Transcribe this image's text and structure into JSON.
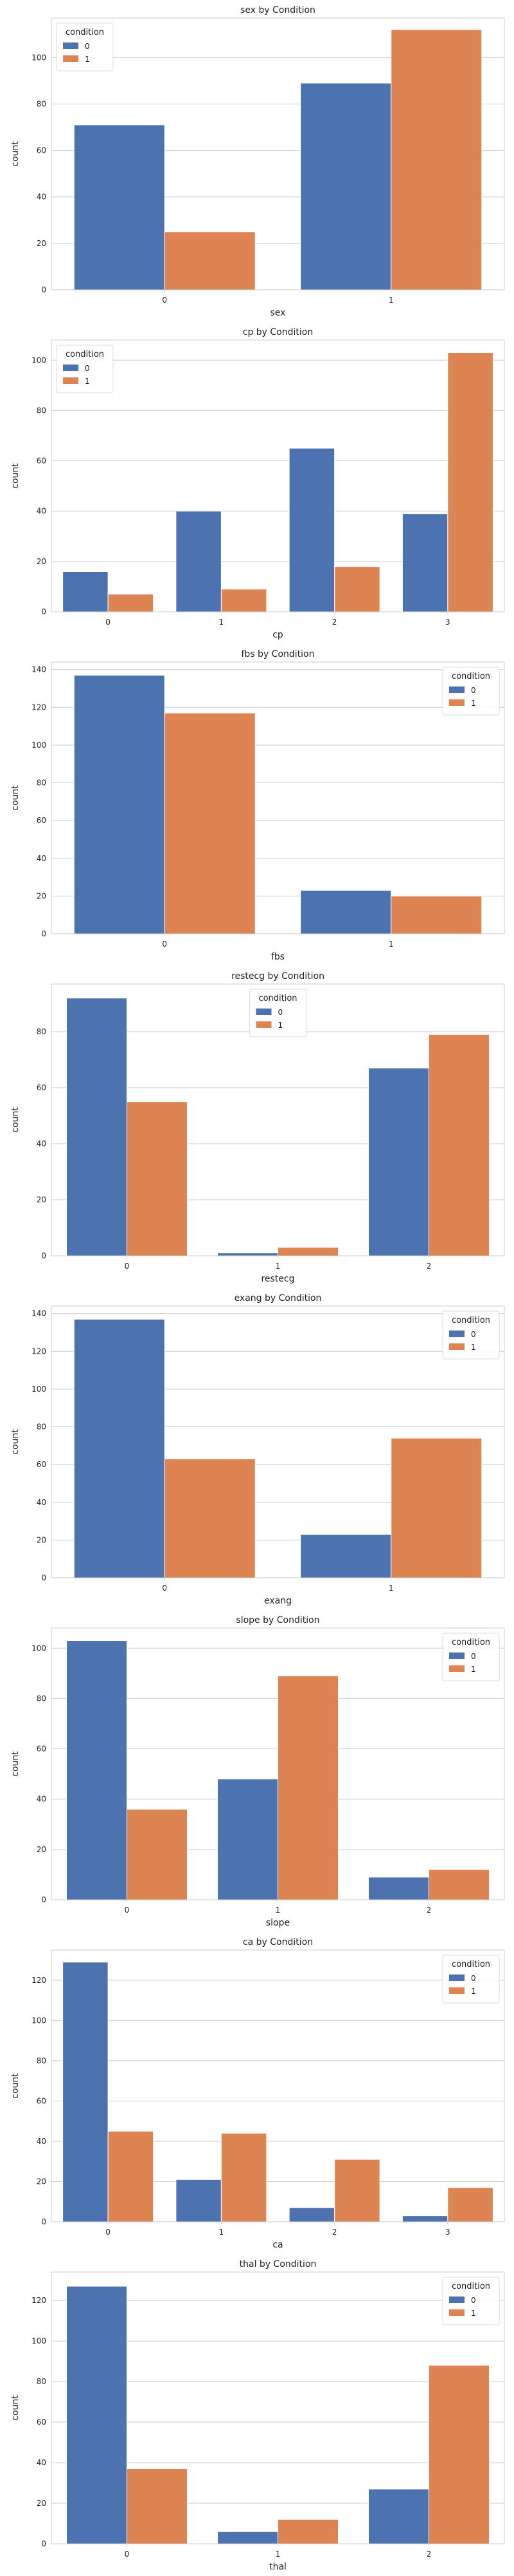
{
  "colors": {
    "condition_0": "#4c72b0",
    "condition_1": "#dd8452",
    "grid": "#cccccc",
    "axis": "#cccccc",
    "text": "#222222"
  },
  "chart_data": [
    {
      "type": "bar",
      "title": "sex by Condition",
      "xlabel": "sex",
      "ylabel": "count",
      "categories": [
        "0",
        "1"
      ],
      "series": [
        {
          "name": "0",
          "values": [
            71,
            89
          ]
        },
        {
          "name": "1",
          "values": [
            25,
            112
          ]
        }
      ],
      "ylim": [
        0,
        117
      ],
      "yticks": [
        0,
        20,
        40,
        60,
        80,
        100
      ],
      "legend": {
        "title": "condition",
        "position": "top-left"
      },
      "grid": true
    },
    {
      "type": "bar",
      "title": "cp by Condition",
      "xlabel": "cp",
      "ylabel": "count",
      "categories": [
        "0",
        "1",
        "2",
        "3"
      ],
      "series": [
        {
          "name": "0",
          "values": [
            16,
            40,
            65,
            39
          ]
        },
        {
          "name": "1",
          "values": [
            7,
            9,
            18,
            103
          ]
        }
      ],
      "ylim": [
        0,
        108
      ],
      "yticks": [
        0,
        20,
        40,
        60,
        80,
        100
      ],
      "legend": {
        "title": "condition",
        "position": "top-left"
      },
      "grid": true
    },
    {
      "type": "bar",
      "title": "fbs by Condition",
      "xlabel": "fbs",
      "ylabel": "count",
      "categories": [
        "0",
        "1"
      ],
      "series": [
        {
          "name": "0",
          "values": [
            137,
            23
          ]
        },
        {
          "name": "1",
          "values": [
            117,
            20
          ]
        }
      ],
      "ylim": [
        0,
        144
      ],
      "yticks": [
        0,
        20,
        40,
        60,
        80,
        100,
        120,
        140
      ],
      "legend": {
        "title": "condition",
        "position": "top-right"
      },
      "grid": true
    },
    {
      "type": "bar",
      "title": "restecg by Condition",
      "xlabel": "restecg",
      "ylabel": "count",
      "categories": [
        "0",
        "1",
        "2"
      ],
      "series": [
        {
          "name": "0",
          "values": [
            92,
            1,
            67
          ]
        },
        {
          "name": "1",
          "values": [
            55,
            3,
            79
          ]
        }
      ],
      "ylim": [
        0,
        97
      ],
      "yticks": [
        0,
        20,
        40,
        60,
        80
      ],
      "legend": {
        "title": "condition",
        "position": "top-center"
      },
      "grid": true
    },
    {
      "type": "bar",
      "title": "exang by Condition",
      "xlabel": "exang",
      "ylabel": "count",
      "categories": [
        "0",
        "1"
      ],
      "series": [
        {
          "name": "0",
          "values": [
            137,
            23
          ]
        },
        {
          "name": "1",
          "values": [
            63,
            74
          ]
        }
      ],
      "ylim": [
        0,
        144
      ],
      "yticks": [
        0,
        20,
        40,
        60,
        80,
        100,
        120,
        140
      ],
      "legend": {
        "title": "condition",
        "position": "top-right"
      },
      "grid": true
    },
    {
      "type": "bar",
      "title": "slope by Condition",
      "xlabel": "slope",
      "ylabel": "count",
      "categories": [
        "0",
        "1",
        "2"
      ],
      "series": [
        {
          "name": "0",
          "values": [
            103,
            48,
            9
          ]
        },
        {
          "name": "1",
          "values": [
            36,
            89,
            12
          ]
        }
      ],
      "ylim": [
        0,
        108
      ],
      "yticks": [
        0,
        20,
        40,
        60,
        80,
        100
      ],
      "legend": {
        "title": "condition",
        "position": "top-right"
      },
      "grid": true
    },
    {
      "type": "bar",
      "title": "ca by Condition",
      "xlabel": "ca",
      "ylabel": "count",
      "categories": [
        "0",
        "1",
        "2",
        "3"
      ],
      "series": [
        {
          "name": "0",
          "values": [
            129,
            21,
            7,
            3
          ]
        },
        {
          "name": "1",
          "values": [
            45,
            44,
            31,
            17
          ]
        }
      ],
      "ylim": [
        0,
        135
      ],
      "yticks": [
        0,
        20,
        40,
        60,
        80,
        100,
        120
      ],
      "legend": {
        "title": "condition",
        "position": "top-right"
      },
      "grid": true
    },
    {
      "type": "bar",
      "title": "thal by Condition",
      "xlabel": "thal",
      "ylabel": "count",
      "categories": [
        "0",
        "1",
        "2"
      ],
      "series": [
        {
          "name": "0",
          "values": [
            127,
            6,
            27
          ]
        },
        {
          "name": "1",
          "values": [
            37,
            12,
            88
          ]
        }
      ],
      "ylim": [
        0,
        134
      ],
      "yticks": [
        0,
        20,
        40,
        60,
        80,
        100,
        120
      ],
      "legend": {
        "title": "condition",
        "position": "top-right"
      },
      "grid": true
    }
  ]
}
